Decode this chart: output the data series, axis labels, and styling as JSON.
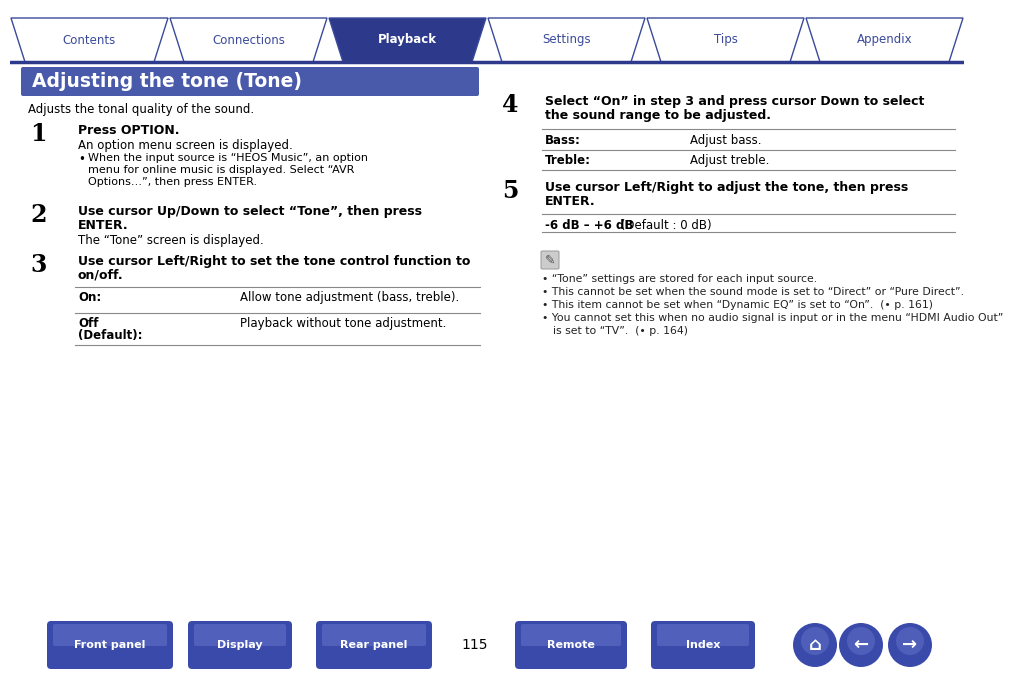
{
  "title": "Adjusting the tone (Tone)",
  "title_bg": "#4a5aab",
  "title_fg": "#ffffff",
  "subtitle": "Adjusts the tonal quality of the sound.",
  "bg_color": "#ffffff",
  "tab_labels": [
    "Contents",
    "Connections",
    "Playback",
    "Settings",
    "Tips",
    "Appendix"
  ],
  "tab_active": 2,
  "tab_active_bg": "#2d3a8c",
  "tab_inactive_bg": "#ffffff",
  "tab_border": "#3a4a9a",
  "step1_num": "1",
  "step1_head": "Press OPTION.",
  "step1_body": "An option menu screen is displayed.",
  "step1_bullet": "When the input source is “HEOS Music”, an option menu for online music is displayed. Select “AVR Options…”, then press ENTER.",
  "step2_num": "2",
  "step2_head_l1": "Use cursor Up/Down to select “Tone”, then press",
  "step2_head_l2": "ENTER.",
  "step2_body": "The “Tone” screen is displayed.",
  "step3_num": "3",
  "step3_head_l1": "Use cursor Left/Right to set the tone control function to",
  "step3_head_l2": "on/off.",
  "table1_rows": [
    [
      "On:",
      "Allow tone adjustment (bass, treble)."
    ],
    [
      "Off\n(Default):",
      "Playback without tone adjustment."
    ]
  ],
  "step4_num": "4",
  "step4_head_l1": "Select “On” in step 3 and press cursor Down to select",
  "step4_head_l2": "the sound range to be adjusted.",
  "table2_rows": [
    [
      "Bass:",
      "Adjust bass."
    ],
    [
      "Treble:",
      "Adjust treble."
    ]
  ],
  "step5_num": "5",
  "step5_head_l1": "Use cursor Left/Right to adjust the tone, then press",
  "step5_head_l2": "ENTER.",
  "step5_range_bold": "-6 dB – +6 dB",
  "step5_range_normal": " (Default : 0 dB)",
  "notes": [
    "“Tone” settings are stored for each input source.",
    "This cannot be set when the sound mode is set to “Direct” or “Pure Direct”.",
    "This item cannot be set when “Dynamic EQ” is set to “On”.  (📄 p. 161)",
    "You cannot set this when no audio signal is input or in the menu “HDMI Audio Out” is set to “TV”.  (📄 p. 164)"
  ],
  "note3": "This item cannot be set when “Dynamic EQ” is set to “On”.",
  "note3_ref": "p. 161",
  "note4_l1": "You cannot set this when no audio signal is input or in the menu “HDMI Audio Out”",
  "note4_l2": "is set to “TV”.",
  "note4_ref": "p. 164",
  "bottom_buttons": [
    "Front panel",
    "Display",
    "Rear panel",
    "Remote",
    "Index"
  ],
  "page_num": "115",
  "btn_color": "#3a4aaa",
  "divider_color": "#2d3a8c",
  "text_color": "#000000",
  "note_color": "#222222"
}
